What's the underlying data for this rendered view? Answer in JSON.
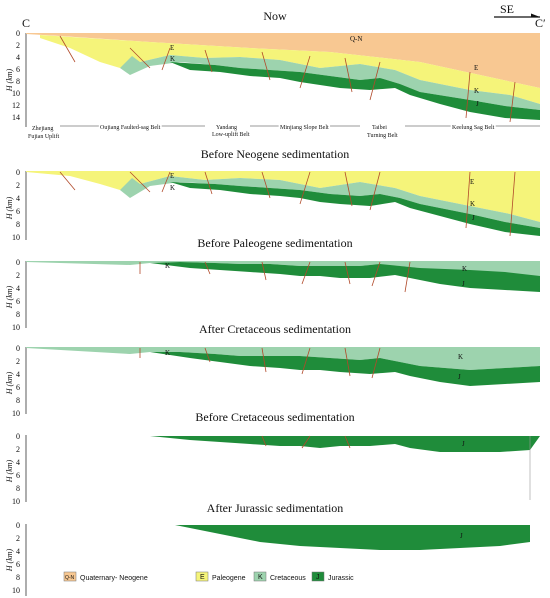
{
  "colors": {
    "qn": "#f8c892",
    "e": "#f5f47a",
    "k": "#9dd3ae",
    "j": "#1f8c3a",
    "jdark": "#16702c",
    "fault": "#b14a2a",
    "axis": "#333333"
  },
  "header": {
    "corner_left": "C",
    "corner_right": "C′",
    "direction": "SE"
  },
  "panels": [
    {
      "title": "Now",
      "ticks": [
        "0",
        "2",
        "4",
        "6",
        "8",
        "10",
        "12",
        "14"
      ],
      "axis_label": "H (km)",
      "labels": {
        "qn": "Q-N",
        "e1": "E",
        "k1": "K",
        "e2": "E",
        "k2": "K",
        "j2": "J"
      }
    },
    {
      "title": "Before Neogene sedimentation",
      "ticks": [
        "0",
        "2",
        "4",
        "6",
        "8",
        "10"
      ],
      "axis_label": "H (km)",
      "labels": {
        "e1": "E",
        "k1": "K",
        "e2": "E",
        "k2": "K",
        "j2": "J"
      }
    },
    {
      "title": "Before Paleogene sedimentation",
      "ticks": [
        "0",
        "2",
        "4",
        "6",
        "8",
        "10"
      ],
      "axis_label": "H (km)",
      "labels": {
        "k1": "K",
        "k2": "K",
        "j2": "J"
      }
    },
    {
      "title": "After Cretaceous sedimentation",
      "ticks": [
        "0",
        "2",
        "4",
        "6",
        "8",
        "10"
      ],
      "axis_label": "H (km)",
      "labels": {
        "k1": "K",
        "k2": "K",
        "j2": "J"
      }
    },
    {
      "title": "Before Cretaceous sedimentation",
      "ticks": [
        "0",
        "2",
        "4",
        "6",
        "8",
        "10"
      ],
      "axis_label": "H (km)",
      "labels": {
        "j2": "J"
      }
    },
    {
      "title": "After Jurassic sedimentation",
      "ticks": [
        "0",
        "2",
        "4",
        "6",
        "8",
        "10"
      ],
      "axis_label": "H (km)",
      "labels": {
        "j2": "J"
      }
    }
  ],
  "belts": {
    "zhejiang_1": "Zhejiang",
    "zhejiang_2": "Fujian Uplift",
    "oujiang": "Oujiang Faulted-sag Belt",
    "yandang_1": "Yandang",
    "yandang_2": "Low-uplift Belt",
    "minjiang": "Minjiang Slope Belt",
    "taibei_1": "Taibei",
    "taibei_2": "Turning Belt",
    "keelung": "Keelung Sag Belt"
  },
  "legend": [
    {
      "code": "Q-N",
      "label": "Quaternary- Neogene",
      "color": "qn"
    },
    {
      "code": "E",
      "label": "Paleogene",
      "color": "e"
    },
    {
      "code": "K",
      "label": "Cretaceous",
      "color": "k"
    },
    {
      "code": "J",
      "label": "Jurassic",
      "color": "j"
    }
  ]
}
